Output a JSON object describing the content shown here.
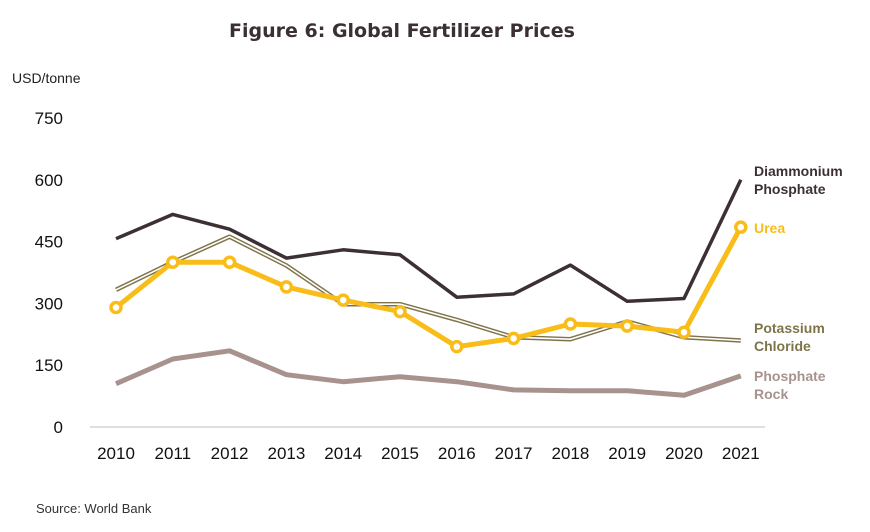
{
  "chart_data": {
    "type": "line",
    "title": "Figure 6: Global  Fertilizer Prices",
    "ylabel": "USD/tonne",
    "xlabel": "",
    "source": "Source: World Bank",
    "x": [
      "2010",
      "2011",
      "2012",
      "2013",
      "2014",
      "2015",
      "2016",
      "2017",
      "2018",
      "2019",
      "2020",
      "2021"
    ],
    "yticks": [
      0,
      150,
      300,
      450,
      600,
      750
    ],
    "ylim": [
      0,
      750
    ],
    "grid": false,
    "legend": "inline-right",
    "series": [
      {
        "name": "Diammonium Phosphate",
        "label_lines": [
          "Diammonium",
          "Phosphate"
        ],
        "color": "#3d3035",
        "style": "solid",
        "values": [
          457,
          516,
          480,
          410,
          430,
          418,
          315,
          323,
          393,
          305,
          312,
          600
        ]
      },
      {
        "name": "Urea",
        "label_lines": [
          "Urea"
        ],
        "color": "#f9bd19",
        "style": "markers",
        "values": [
          290,
          400,
          400,
          340,
          308,
          280,
          195,
          215,
          250,
          245,
          230,
          485
        ]
      },
      {
        "name": "Potassium Chloride",
        "label_lines": [
          "Potassium",
          "Chloride"
        ],
        "color": "#7f7449",
        "style": "double",
        "values": [
          333,
          400,
          462,
          392,
          298,
          298,
          260,
          218,
          213,
          256,
          218,
          210
        ]
      },
      {
        "name": "Phosphate Rock",
        "label_lines": [
          "Phosphate",
          "Rock"
        ],
        "color": "#a8928e",
        "style": "thick",
        "values": [
          105,
          165,
          185,
          127,
          110,
          122,
          110,
          90,
          88,
          88,
          77,
          124
        ]
      }
    ]
  }
}
